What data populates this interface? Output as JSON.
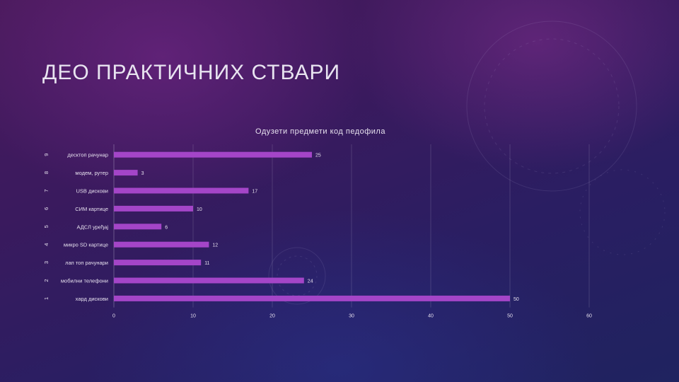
{
  "slide": {
    "title": "ДЕО ПРАКТИЧНИХ СТВАРИ"
  },
  "colors": {
    "bar": "#a445c8",
    "text": "#e6e0ee",
    "grid": "#cfc6e0"
  },
  "chart_data": {
    "type": "bar",
    "orientation": "horizontal",
    "title": "Одузети предмети код педофила",
    "xlim": [
      0,
      60
    ],
    "xticks": [
      "0",
      "10",
      "20",
      "30",
      "40",
      "50",
      "60"
    ],
    "grid": "vertical",
    "categories": [
      {
        "index": "9",
        "label": "десктоп рачунар",
        "value": 25
      },
      {
        "index": "8",
        "label": "модем, рутер",
        "value": 3
      },
      {
        "index": "7",
        "label": "USB дискови",
        "value": 17
      },
      {
        "index": "6",
        "label": "СИМ картице",
        "value": 10
      },
      {
        "index": "5",
        "label": "АДСЛ уређај",
        "value": 6
      },
      {
        "index": "4",
        "label": "микро SD картице",
        "value": 12
      },
      {
        "index": "3",
        "label": "лап топ рачунари",
        "value": 11
      },
      {
        "index": "2",
        "label": "мобилни телефони",
        "value": 24
      },
      {
        "index": "1",
        "label": "хард дискови",
        "value": 50
      }
    ]
  }
}
